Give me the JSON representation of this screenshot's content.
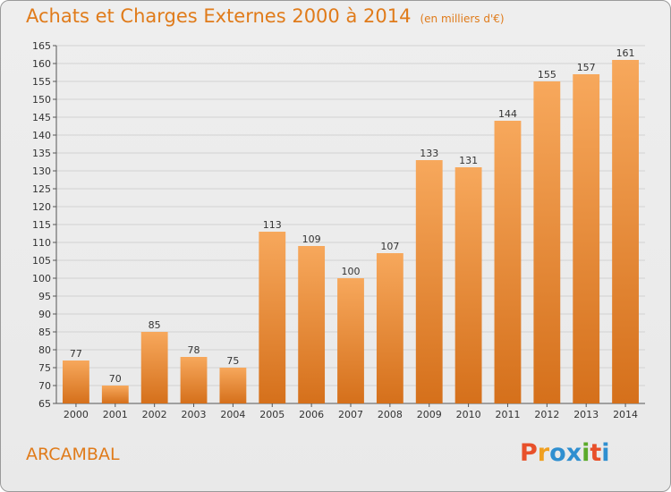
{
  "header": {
    "title": "Achats et Charges Externes 2000 à 2014",
    "subtitle": "(en milliers d'€)"
  },
  "footer": {
    "place": "ARCAMBAL",
    "logo_text": "Proxiti"
  },
  "colors": {
    "title": "#e07b1a",
    "bar_light": "#f6a65a",
    "bar_dark": "#d8711a",
    "logo": [
      "#e8502a",
      "#f0a020",
      "#2f8fd0",
      "#2f8fd0",
      "#5aaa2a",
      "#e8502a",
      "#2f8fd0"
    ]
  },
  "chart_data": {
    "type": "bar",
    "categories": [
      "2000",
      "2001",
      "2002",
      "2003",
      "2004",
      "2005",
      "2006",
      "2007",
      "2008",
      "2009",
      "2010",
      "2011",
      "2012",
      "2013",
      "2014"
    ],
    "values": [
      77,
      70,
      85,
      78,
      75,
      113,
      109,
      100,
      107,
      133,
      131,
      144,
      155,
      157,
      161
    ],
    "ylim": [
      65,
      165
    ],
    "yticks": [
      65,
      70,
      75,
      80,
      85,
      90,
      95,
      100,
      105,
      110,
      115,
      120,
      125,
      130,
      135,
      140,
      145,
      150,
      155,
      160,
      165
    ],
    "grid": true
  }
}
